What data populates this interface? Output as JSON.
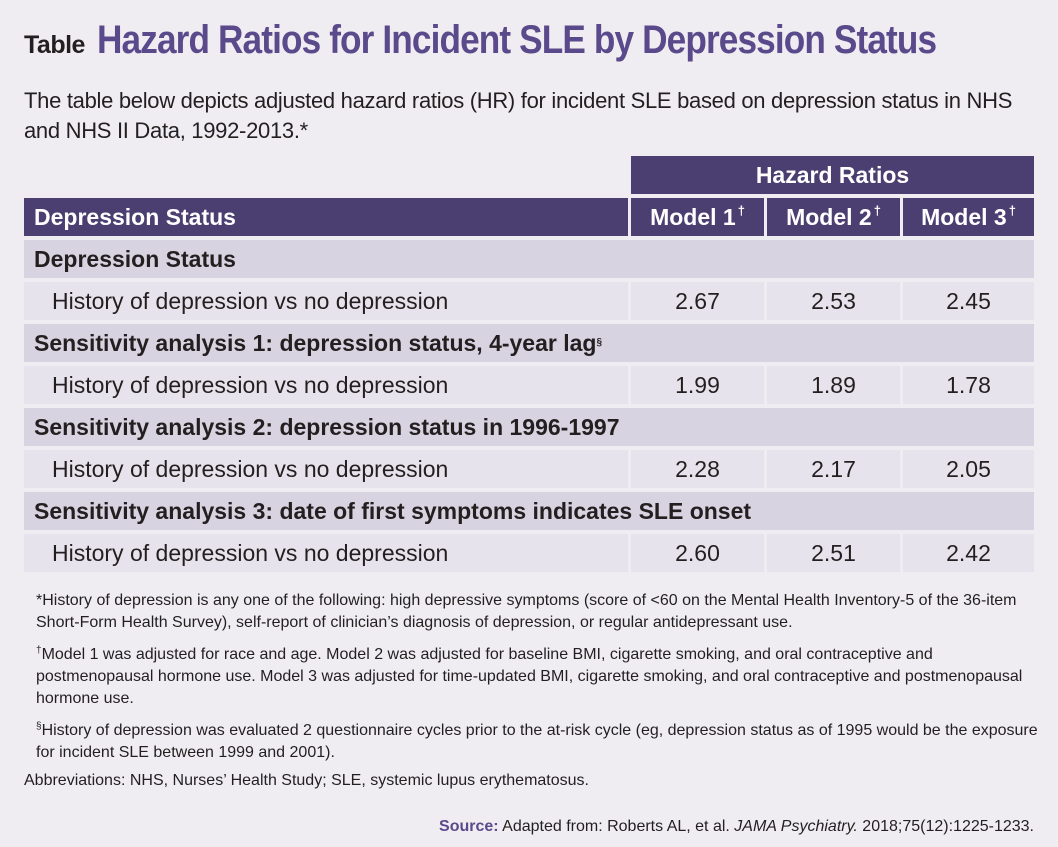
{
  "title": {
    "label": "Table",
    "text": "Hazard Ratios for Incident SLE by Depression Status"
  },
  "intro": "The table below depicts adjusted hazard ratios (HR) for incident SLE based on depression status in NHS and NHS II Data, 1992-2013.*",
  "table": {
    "group_header": "Hazard Ratios",
    "col_label": "Depression Status",
    "models": [
      "Model 1",
      "Model 2",
      "Model 3"
    ],
    "model_mark": "†",
    "sections": [
      {
        "heading": "Depression Status",
        "heading_mark": "",
        "row_label": "History of depression vs no depression",
        "values": [
          "2.67",
          "2.53",
          "2.45"
        ]
      },
      {
        "heading": "Sensitivity analysis 1: depression status, 4-year lag",
        "heading_mark": "§",
        "row_label": "History of depression vs no depression",
        "values": [
          "1.99",
          "1.89",
          "1.78"
        ]
      },
      {
        "heading": "Sensitivity analysis 2: depression status in 1996-1997",
        "heading_mark": "",
        "row_label": "History of depression vs no depression",
        "values": [
          "2.28",
          "2.17",
          "2.05"
        ]
      },
      {
        "heading": "Sensitivity analysis 3: date of first symptoms indicates SLE onset",
        "heading_mark": "",
        "row_label": "History of depression vs no depression",
        "values": [
          "2.60",
          "2.51",
          "2.42"
        ]
      }
    ]
  },
  "notes": {
    "n1": "*History of depression is any one of the following: high depressive symptoms (score of <60 on the Mental Health Inventory-5 of the 36-item Short-Form Health Survey), self-report of clinician’s diagnosis of depression, or regular antidepressant use.",
    "n2_mark": "†",
    "n2": "Model 1 was adjusted for race and age. Model 2 was adjusted for baseline BMI, cigarette smoking, and oral contraceptive and postmenopausal hormone use. Model 3 was adjusted for time-updated BMI, cigarette smoking, and oral contraceptive and postmenopausal hormone use.",
    "n3_mark": "§",
    "n3": "History of depression was evaluated 2 questionnaire cycles prior to the at-risk cycle (eg, depression status as of 1995 would be the exposure for incident SLE between 1999 and 2001).",
    "abbrev": "Abbreviations: NHS, Nurses’ Health Study; SLE, systemic lupus erythematosus."
  },
  "source": {
    "label": "Source:",
    "pre": " Adapted from: Roberts AL, et al. ",
    "journal": "JAMA Psychiatry.",
    "post": " 2018;75(12):1225-1233."
  },
  "colors": {
    "accent": "#5b4a8b",
    "header_bg": "#4b3f72",
    "section_bg": "#d8d3e0",
    "row_bg": "#e7e3ec",
    "page_bg": "#efedf2"
  }
}
